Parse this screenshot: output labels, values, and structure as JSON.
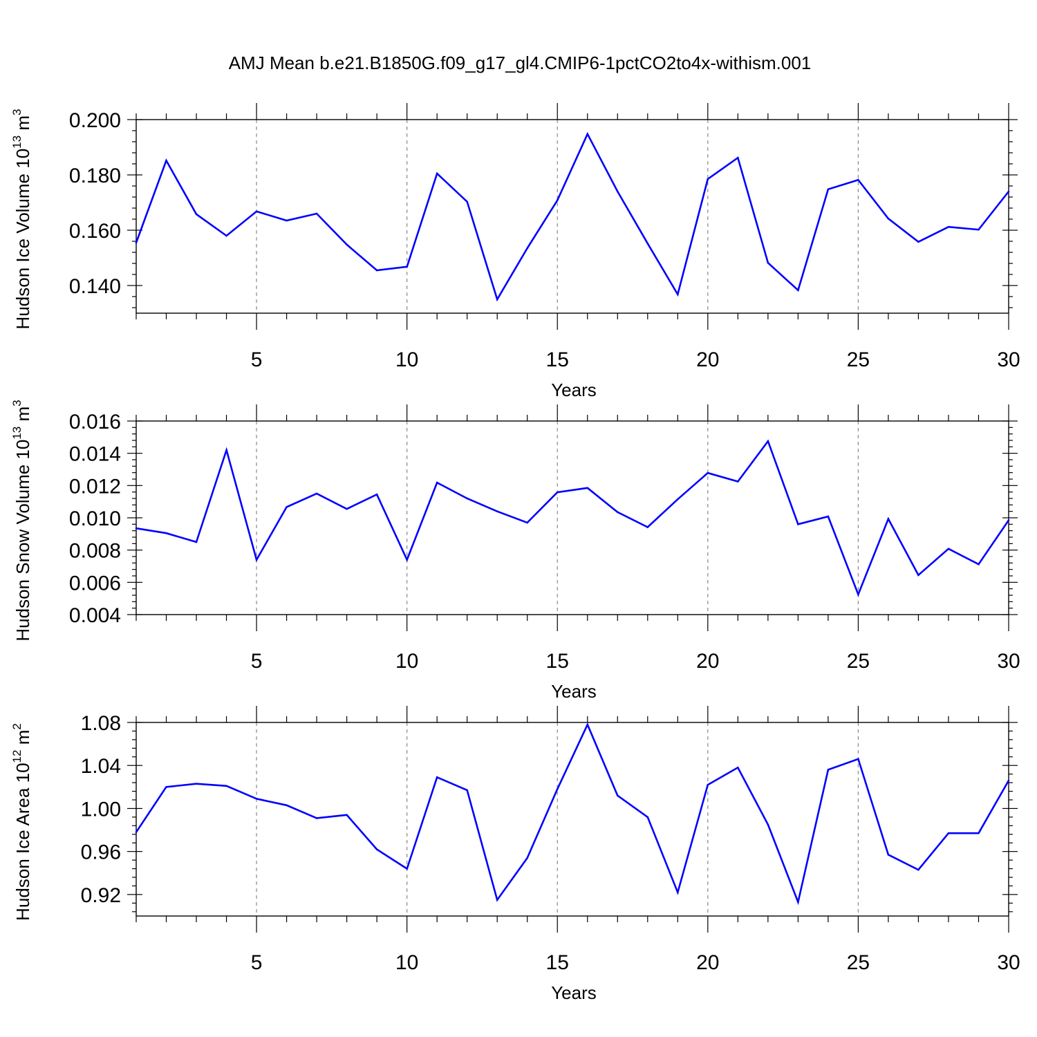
{
  "title": "AMJ Mean b.e21.B1850G.f09_g17_gl4.CMIP6-1pctCO2to4x-withism.001",
  "line_color": "#0000ff",
  "chart_data": [
    {
      "type": "line",
      "xlabel": "Years",
      "ylabel": "Hudson Ice Volume 10",
      "ylabel_exp": "13",
      "ylabel_unit": " m",
      "ylabel_unit_exp": "3",
      "xlim": [
        1,
        30
      ],
      "ylim": [
        0.13,
        0.2
      ],
      "xticks": [
        5,
        10,
        15,
        20,
        25,
        30
      ],
      "xtick_labels": [
        "5",
        "10",
        "15",
        "20",
        "25",
        "30"
      ],
      "yticks": [
        0.14,
        0.16,
        0.18,
        0.2
      ],
      "ytick_labels": [
        "0.140",
        "0.160",
        "0.180",
        "0.200"
      ],
      "grid": "dashed vertical at major x ticks",
      "x": [
        1,
        2,
        3,
        4,
        5,
        6,
        7,
        8,
        9,
        10,
        11,
        12,
        13,
        14,
        15,
        16,
        17,
        18,
        19,
        20,
        21,
        22,
        23,
        24,
        25,
        26,
        27,
        28,
        29,
        30
      ],
      "series": [
        {
          "values": [
            0.1555,
            0.1852,
            0.1658,
            0.158,
            0.1668,
            0.1635,
            0.166,
            0.1548,
            0.1455,
            0.1468,
            0.1805,
            0.1703,
            0.135,
            0.1535,
            0.1708,
            0.1948,
            0.174,
            0.1552,
            0.1368,
            0.1785,
            0.1862,
            0.1482,
            0.1383,
            0.1748,
            0.1782,
            0.1642,
            0.1558,
            0.1612,
            0.1602,
            0.174
          ]
        }
      ]
    },
    {
      "type": "line",
      "xlabel": "Years",
      "ylabel": "Hudson Snow Volume 10",
      "ylabel_exp": "13",
      "ylabel_unit": " m",
      "ylabel_unit_exp": "3",
      "xlim": [
        1,
        30
      ],
      "ylim": [
        0.004,
        0.016
      ],
      "xticks": [
        5,
        10,
        15,
        20,
        25,
        30
      ],
      "xtick_labels": [
        "5",
        "10",
        "15",
        "20",
        "25",
        "30"
      ],
      "yticks": [
        0.004,
        0.006,
        0.008,
        0.01,
        0.012,
        0.014,
        0.016
      ],
      "ytick_labels": [
        "0.004",
        "0.006",
        "0.008",
        "0.010",
        "0.012",
        "0.014",
        "0.016"
      ],
      "grid": "dashed vertical at major x ticks",
      "x": [
        1,
        2,
        3,
        4,
        5,
        6,
        7,
        8,
        9,
        10,
        11,
        12,
        13,
        14,
        15,
        16,
        17,
        18,
        19,
        20,
        21,
        22,
        23,
        24,
        25,
        26,
        27,
        28,
        29,
        30
      ],
      "series": [
        {
          "values": [
            0.00935,
            0.00905,
            0.0085,
            0.0142,
            0.0074,
            0.01067,
            0.0115,
            0.01055,
            0.01145,
            0.0074,
            0.01218,
            0.0112,
            0.0104,
            0.0097,
            0.01158,
            0.01185,
            0.01035,
            0.00942,
            0.01115,
            0.01278,
            0.01225,
            0.01475,
            0.0096,
            0.01008,
            0.00525,
            0.00993,
            0.00645,
            0.00808,
            0.00712,
            0.00985
          ]
        }
      ]
    },
    {
      "type": "line",
      "xlabel": "Years",
      "ylabel": "Hudson Ice Area 10",
      "ylabel_exp": "12",
      "ylabel_unit": " m",
      "ylabel_unit_exp": "2",
      "xlim": [
        1,
        30
      ],
      "ylim": [
        0.9,
        1.08
      ],
      "xticks": [
        5,
        10,
        15,
        20,
        25,
        30
      ],
      "xtick_labels": [
        "5",
        "10",
        "15",
        "20",
        "25",
        "30"
      ],
      "yticks": [
        0.92,
        0.96,
        1.0,
        1.04,
        1.08
      ],
      "ytick_labels": [
        "0.92",
        "0.96",
        "1.00",
        "1.04",
        "1.08"
      ],
      "grid": "dashed vertical at major x ticks",
      "x": [
        1,
        2,
        3,
        4,
        5,
        6,
        7,
        8,
        9,
        10,
        11,
        12,
        13,
        14,
        15,
        16,
        17,
        18,
        19,
        20,
        21,
        22,
        23,
        24,
        25,
        26,
        27,
        28,
        29,
        30
      ],
      "series": [
        {
          "values": [
            0.978,
            1.02,
            1.023,
            1.021,
            1.009,
            1.003,
            0.991,
            0.994,
            0.962,
            0.944,
            1.029,
            1.017,
            0.915,
            0.954,
            1.018,
            1.078,
            1.012,
            0.992,
            0.922,
            1.022,
            1.038,
            0.985,
            0.913,
            1.036,
            1.046,
            0.957,
            0.943,
            0.977,
            0.977,
            1.026
          ]
        }
      ]
    }
  ]
}
